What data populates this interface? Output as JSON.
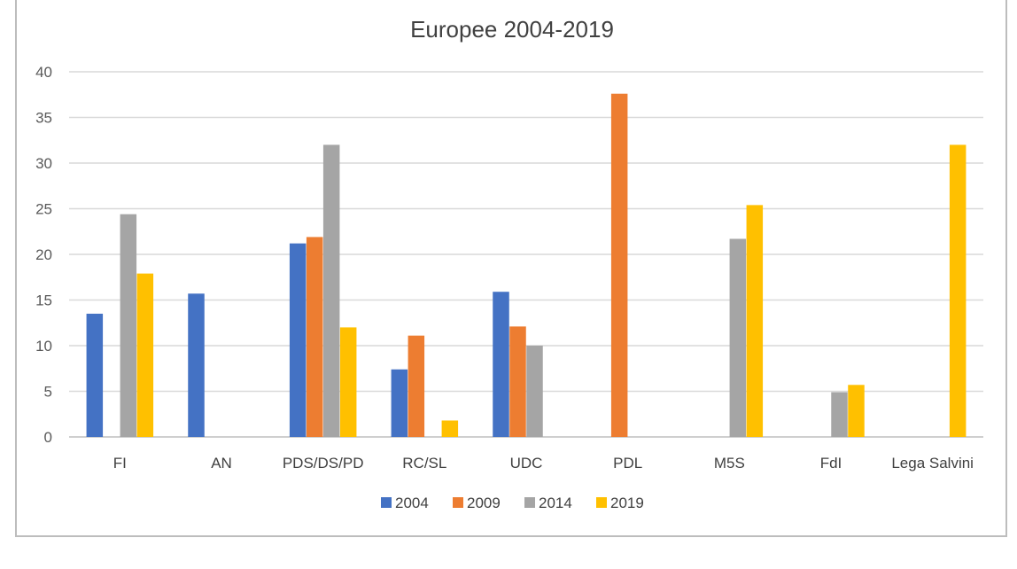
{
  "chart_data": {
    "type": "bar",
    "title": "Europee 2004-2019",
    "categories": [
      "FI",
      "AN",
      "PDS/DS/PD",
      "RC/SL",
      "UDC",
      "PDL",
      "M5S",
      "FdI",
      "Lega Salvini"
    ],
    "series": [
      {
        "name": "2004",
        "color": "#4472C4",
        "values": [
          13.5,
          15.7,
          21.2,
          7.4,
          15.9,
          null,
          null,
          null,
          null
        ]
      },
      {
        "name": "2009",
        "color": "#ED7D31",
        "values": [
          null,
          null,
          21.9,
          11.1,
          12.1,
          37.6,
          null,
          null,
          null
        ]
      },
      {
        "name": "2014",
        "color": "#A5A5A5",
        "values": [
          24.4,
          null,
          32.0,
          null,
          10.0,
          null,
          21.7,
          4.9,
          null
        ]
      },
      {
        "name": "2019",
        "color": "#FFC000",
        "values": [
          17.9,
          null,
          12.0,
          1.8,
          null,
          null,
          25.4,
          5.7,
          32.0
        ]
      }
    ],
    "ylim": [
      0,
      40
    ],
    "yticks": [
      0,
      5,
      10,
      15,
      20,
      25,
      30,
      35,
      40
    ],
    "grid": true,
    "legend_position": "bottom"
  }
}
